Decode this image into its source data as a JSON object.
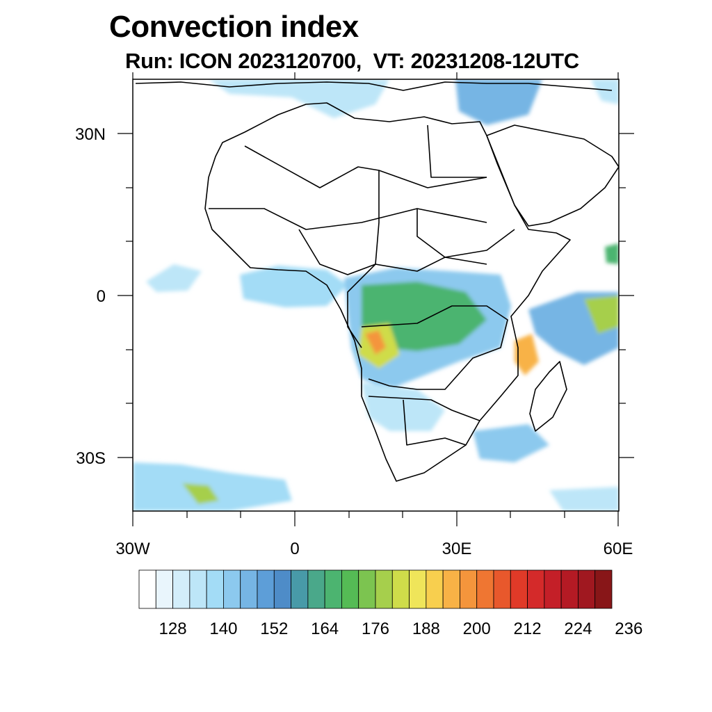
{
  "title": "Convection index",
  "subtitle": "Run: ICON 2023120700,  VT: 20231208-12UTC",
  "map": {
    "region": "Africa",
    "lon_range": [
      -30,
      60
    ],
    "lat_range": [
      -40,
      40
    ],
    "lat_ticks": [
      {
        "value": 30,
        "label": "30N"
      },
      {
        "value": 0,
        "label": "0"
      },
      {
        "value": -30,
        "label": "30S"
      }
    ],
    "lon_ticks": [
      {
        "value": -30,
        "label": "30W"
      },
      {
        "value": 0,
        "label": "0"
      },
      {
        "value": 30,
        "label": "30E"
      },
      {
        "value": 60,
        "label": "60E"
      }
    ]
  },
  "colorbar": {
    "labels": [
      "128",
      "140",
      "152",
      "164",
      "176",
      "188",
      "200",
      "212",
      "224",
      "236"
    ],
    "colors": [
      "#ffffff",
      "#e9f5fc",
      "#d3eefa",
      "#bde6f8",
      "#a3dcf6",
      "#8cc9ee",
      "#76b5e4",
      "#5d9ed8",
      "#4e8cc8",
      "#489aa8",
      "#4aa88a",
      "#4cb470",
      "#55bb55",
      "#7cc450",
      "#a6cf4c",
      "#cfdc4a",
      "#efe55a",
      "#f8cf4e",
      "#f8b246",
      "#f4953c",
      "#ef7632",
      "#e8582c",
      "#e03a28",
      "#d42a2a",
      "#c41f28",
      "#b41a24",
      "#a01820",
      "#881618"
    ]
  }
}
